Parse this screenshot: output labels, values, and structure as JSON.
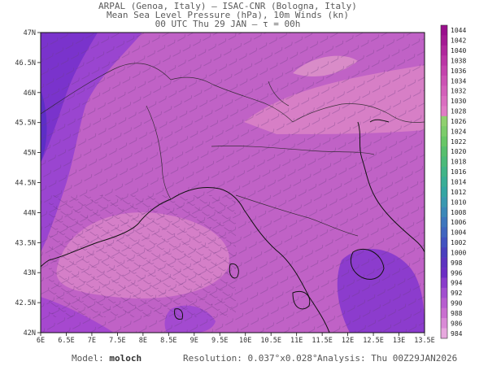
{
  "header": {
    "line1": "ARPAL (Genoa, Italy)  —  ISAC-CNR (Bologna, Italy)",
    "line2": "Mean Sea Level Pressure (hPa), 10m Winds (kn)",
    "line3": "00 UTC Thu 29 JAN  —  τ = 00h"
  },
  "map": {
    "lon_ticks": [
      "6E",
      "6.5E",
      "7E",
      "7.5E",
      "8E",
      "8.5E",
      "9E",
      "9.5E",
      "10E",
      "10.5E",
      "11E",
      "11.5E",
      "12E",
      "12.5E",
      "13E",
      "13.5E"
    ],
    "lat_ticks": [
      "47N",
      "46.5N",
      "46N",
      "45.5N",
      "45N",
      "44.5N",
      "44N",
      "43.5N",
      "43N",
      "42.5N",
      "42N"
    ],
    "lon_range": [
      6,
      13.5
    ],
    "lat_range": [
      42,
      47
    ]
  },
  "colorbar": {
    "levels": [
      "1044",
      "1042",
      "1040",
      "1038",
      "1036",
      "1034",
      "1032",
      "1030",
      "1028",
      "1026",
      "1024",
      "1022",
      "1020",
      "1018",
      "1016",
      "1014",
      "1012",
      "1010",
      "1008",
      "1006",
      "1004",
      "1002",
      "1000",
      "998",
      "996",
      "994",
      "992",
      "990",
      "988",
      "986",
      "984"
    ],
    "colors": [
      "#9a0f8c",
      "#a41a93",
      "#b0289c",
      "#bb36a5",
      "#c444ad",
      "#cc52b4",
      "#d360ba",
      "#da6ec0",
      "#e07cc5",
      "#8fd06f",
      "#7ccc6b",
      "#68c667",
      "#57bf6e",
      "#4cba7a",
      "#42b488",
      "#3aad96",
      "#35a5a3",
      "#3a98b0",
      "#3c88b8",
      "#3e76bd",
      "#4065bf",
      "#4252c0",
      "#4a3fbe",
      "#5d33c0",
      "#6c2ec4",
      "#8a3ccb",
      "#a24ecf",
      "#b75dcf",
      "#c96fd0",
      "#d98ad6",
      "#e7a8de"
    ]
  },
  "footer": {
    "model_label": "Model:",
    "model_value": "moloch",
    "resolution": "Resolution: 0.037°x0.028°",
    "analysis": "Analysis: Thu 00Z29JAN2026"
  },
  "colors": {
    "field_base": "#c062c6",
    "low_pressure": "#7030d0",
    "high_pressure": "#d880c8",
    "coast": "#111111"
  }
}
